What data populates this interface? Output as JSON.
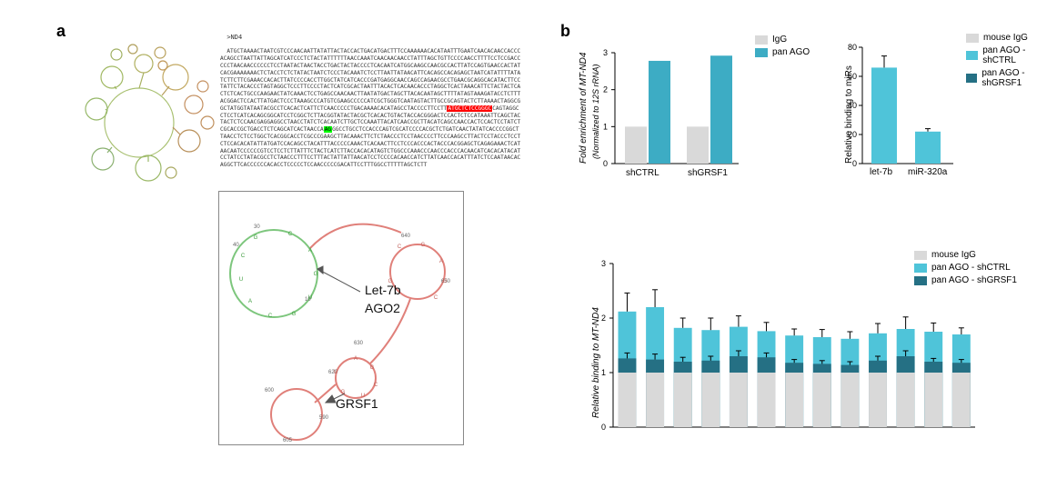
{
  "panels": {
    "a": "a",
    "b": "b"
  },
  "panelA": {
    "sequence_header": ">ND4",
    "sequence_prefix": "ATGCTAAAACTAATCGTCCCAACAATTATATTACTACCACTGACATGACTTTCCAAAAAACACATAATTTGAATCAACACAACCACCCACAGCCTAATTATTAGCATCATCCCTCTACTATTTTTTAACCAAATCAACAACAACCTATTTAGCTGTTCCCCAACCTTTTCCTCCGACCCCCTAACAACCCCCCTCCTAATACTAACTACCTGACTACTACCCCTCACAATCATGGCAAGCCAACGCCACTTATCCAGTGAACCACTATCACGAAAAAAACTCTACCTCTCTATACTAATCTCCCTACAAATCTCCTTAATTATAACATTCACAGCCACAGAGCTAATCATATTTTATATCTTCTTCGAAACCACACTTATCCCCACCTTGGCTATCATCACCCGATGAGGCAACCAGCCAGAACGCCTGAACGCAGGCACATACTTCCTATTCTACACCCTAGTAGGCTCCCTTCCCCTACTCATCGCACTAATTTACACTCACAACACCCTAGGCTCACTAAACATTCTACTACTCACTCTCACTGCCCAAGAACTATCAAACTCCTGAGCCAACAACTTAATATGACTAGCTTACACAATAGCTTTTATAGTAAAGATACCTCTTTACGGACTCCACTTATGACTCCCTAAAGCCCATGTCGAAGCCCCCATCGCTGGGTCAATAGTACTTGCCGCAGTACTCTTAAAACTAGGCGGCTATGGTATAATACGCCTCACACTCATTCTCAACCCCCTGACAAAACACATAGCCTACCCCTTCCTT",
    "highlight_red": "ATGCTCTCCGGGC",
    "sequence_mid": "CAGTAGGCCTCCTCATCACAGCGGCATCCTCGGCTCTTACGGTATACTACGCTCACACTGTACTACCACGGGACTCCACTCTCCATAAATTCAGCTACTACTCTCCAACGAGGAGGCCTAACCTATCTCACAATCTTGCTCCAAATTACATCAACCGCTTACATCAGCCAACCACTCCACTCCTATCTCGCACCGCTGACCTCTCAGCATCACTAACCA",
    "highlight_green": "AG",
    "sequence_suffix": "GGCCTGCCTCCACCCAGTCGCATCCCCACGCTCTGATCAACTATATCACCCCGGCTTAACCTCTCCTGGCTCACGGCACCTCGCCCGAAGCTTACAAACTTCTCTAACCCTCCTAACCCCTTCCCAAGCCTTACTCCTACCCTCCTCTCCACACATATTATGATCCACAGCCTACATTTACCCCCAAACTCACAACTTCCTCCCACCCACTACCCACGGAGCTCAGAGAAACTCATAACAATCCCCCCGTCCTCCTCTTATTTCTACTCATCTTACCACACATAGTCTGGCCCAAACCCAACCCACCCACAACATCACACATACATCCTATCCTATACGCCTCTAACCCTTTCCTTTACTATTATTAACATCCTCCCCACAACCATCTTATCAACCACATTTATCTCCAATAACACAGGCTTCACCCCCCACACCTCCCCCTCCAACCCCCGACATTCCTTTGGCCTTTTTAGCTCTT",
    "detail_labels": {
      "let7b": "Let-7b",
      "ago2": "AGO2",
      "grsf1": "GRSF1"
    }
  },
  "panelB": {
    "colors": {
      "igg": "#d9d9d9",
      "panAgo": "#3dacc4",
      "panAgo_shCTRL": "#4fc4d9",
      "panAgo_shGRSF1": "#257084",
      "grid": "#e0e0e0",
      "text": "#000"
    },
    "chart1": {
      "ylabel": "Fold enrichment of MT-ND4",
      "ysub": "(Normalized to 12S rRNA)",
      "ymax": 3,
      "groups": [
        "shCTRL",
        "shGRSF1"
      ],
      "series": [
        {
          "name": "IgG",
          "values": [
            1.0,
            1.0
          ]
        },
        {
          "name": "pan AGO",
          "values": [
            2.78,
            2.92
          ]
        }
      ]
    },
    "chart2": {
      "ylabel": "Relative binding to miRs",
      "ymax": 80,
      "xlabels": [
        "let-7b",
        "miR-320a"
      ],
      "legend": [
        "mouse IgG",
        "pan AGO - shCTRL",
        "pan AGO - shGRSF1"
      ],
      "series": [
        {
          "name": "shCTRL",
          "values": [
            66,
            22
          ],
          "err": [
            8,
            2
          ]
        }
      ]
    },
    "chart3": {
      "ylabel": "Relative binding to MT-ND4",
      "ymax": 3,
      "legend": [
        "mouse IgG",
        "pan AGO - shCTRL",
        "pan AGO - shGRSF1"
      ],
      "groups_n": 13,
      "igg": [
        1,
        1,
        1,
        1,
        1,
        1,
        1,
        1,
        1,
        1,
        1,
        1,
        1
      ],
      "shCTRL": {
        "values": [
          2.12,
          2.2,
          1.82,
          1.78,
          1.84,
          1.76,
          1.68,
          1.65,
          1.62,
          1.72,
          1.8,
          1.75,
          1.7
        ],
        "err": [
          0.34,
          0.32,
          0.18,
          0.22,
          0.2,
          0.16,
          0.12,
          0.14,
          0.13,
          0.18,
          0.22,
          0.16,
          0.12
        ]
      },
      "shGRSF1": {
        "values": [
          1.26,
          1.24,
          1.2,
          1.22,
          1.3,
          1.28,
          1.18,
          1.16,
          1.14,
          1.22,
          1.3,
          1.2,
          1.18
        ],
        "err": [
          0.1,
          0.1,
          0.08,
          0.08,
          0.1,
          0.08,
          0.06,
          0.06,
          0.06,
          0.08,
          0.1,
          0.06,
          0.06
        ]
      }
    }
  }
}
